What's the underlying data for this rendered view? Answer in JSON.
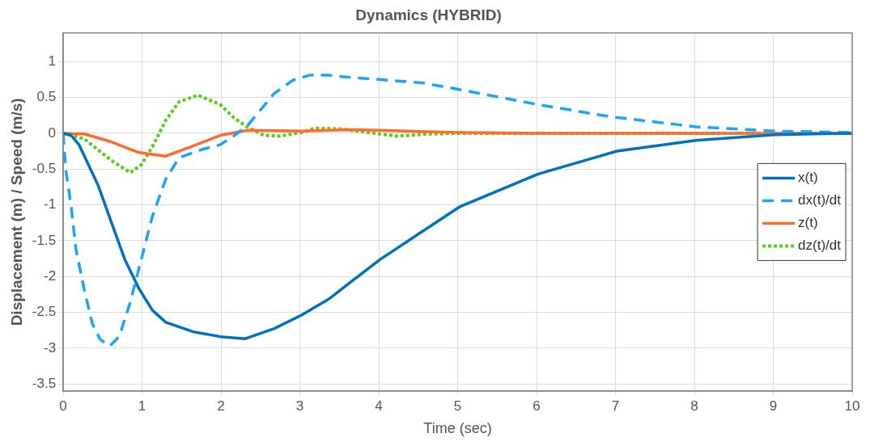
{
  "chart_data": {
    "type": "line",
    "title": "Dynamics (HYBRID)",
    "xlabel": "Time (sec)",
    "ylabel": "Displacement (m) / Speed (m/s)",
    "xlim": [
      0,
      10
    ],
    "xticks": [
      0,
      1,
      2,
      3,
      4,
      5,
      6,
      7,
      8,
      9,
      10
    ],
    "ylim": [
      -3.6,
      1.4
    ],
    "yticks": [
      -3.5,
      -3,
      -2.5,
      -2,
      -1.5,
      -1,
      -0.5,
      0,
      0.5,
      1
    ],
    "grid": true,
    "legend": "right",
    "marker": "none",
    "series": [
      {
        "name": "x(t)",
        "color": "#0072bd",
        "line_style": "solid",
        "x": [
          0,
          0.1,
          0.2,
          0.44,
          0.61,
          0.78,
          0.96,
          1.13,
          1.3,
          1.64,
          1.99,
          2.3,
          2.67,
          3.02,
          3.36,
          3.64,
          4.02,
          5.02,
          6.02,
          6.83,
          7.02,
          8.02,
          9.02,
          10
        ],
        "values": [
          0,
          -0.03,
          -0.16,
          -0.72,
          -1.24,
          -1.76,
          -2.17,
          -2.47,
          -2.64,
          -2.77,
          -2.84,
          -2.87,
          -2.73,
          -2.54,
          -2.32,
          -2.08,
          -1.76,
          -1.03,
          -0.57,
          -0.31,
          -0.25,
          -0.1,
          -0.02,
          0
        ]
      },
      {
        "name": "dx(t)/dt",
        "color": "#1aa3ff",
        "line_style": "dashed",
        "x": [
          0,
          0.03,
          0.1,
          0.16,
          0.27,
          0.37,
          0.47,
          0.59,
          0.71,
          0.85,
          0.99,
          1.13,
          1.3,
          1.47,
          1.75,
          1.99,
          2.16,
          2.33,
          2.67,
          2.91,
          3.12,
          3.36,
          3.64,
          4.02,
          4.57,
          5.02,
          6.02,
          6.83,
          7.02,
          8.02,
          9.02,
          10
        ],
        "values": [
          0,
          -0.49,
          -1.01,
          -1.61,
          -2.2,
          -2.66,
          -2.88,
          -2.97,
          -2.84,
          -2.36,
          -1.76,
          -1.16,
          -0.64,
          -0.34,
          -0.23,
          -0.16,
          -0.04,
          0.1,
          0.55,
          0.74,
          0.81,
          0.81,
          0.78,
          0.75,
          0.7,
          0.61,
          0.4,
          0.25,
          0.22,
          0.09,
          0.03,
          0.01
        ]
      },
      {
        "name": "z(t)",
        "color": "#ff6b2b",
        "line_style": "solid",
        "x": [
          0,
          0.27,
          0.61,
          0.96,
          1.3,
          1.64,
          1.99,
          2.33,
          3.02,
          3.64,
          4.02,
          5.02,
          6,
          10
        ],
        "values": [
          0,
          -0.01,
          -0.12,
          -0.27,
          -0.32,
          -0.18,
          -0.03,
          0.04,
          0.03,
          0.05,
          0.04,
          0.01,
          0,
          0
        ]
      },
      {
        "name": "dz(t)/dt",
        "color": "#5ccc1a",
        "line_style": "dotted",
        "x": [
          0,
          0.27,
          0.61,
          0.85,
          0.99,
          1.13,
          1.3,
          1.47,
          1.71,
          1.99,
          2.16,
          2.33,
          2.54,
          2.74,
          3.02,
          3.19,
          3.53,
          4.22,
          4.65,
          5.02,
          10
        ],
        "values": [
          0,
          -0.08,
          -0.38,
          -0.55,
          -0.44,
          -0.19,
          0.18,
          0.44,
          0.53,
          0.4,
          0.22,
          0.09,
          -0.03,
          -0.04,
          0.01,
          0.07,
          0.06,
          -0.04,
          -0.01,
          0,
          0
        ]
      }
    ]
  }
}
